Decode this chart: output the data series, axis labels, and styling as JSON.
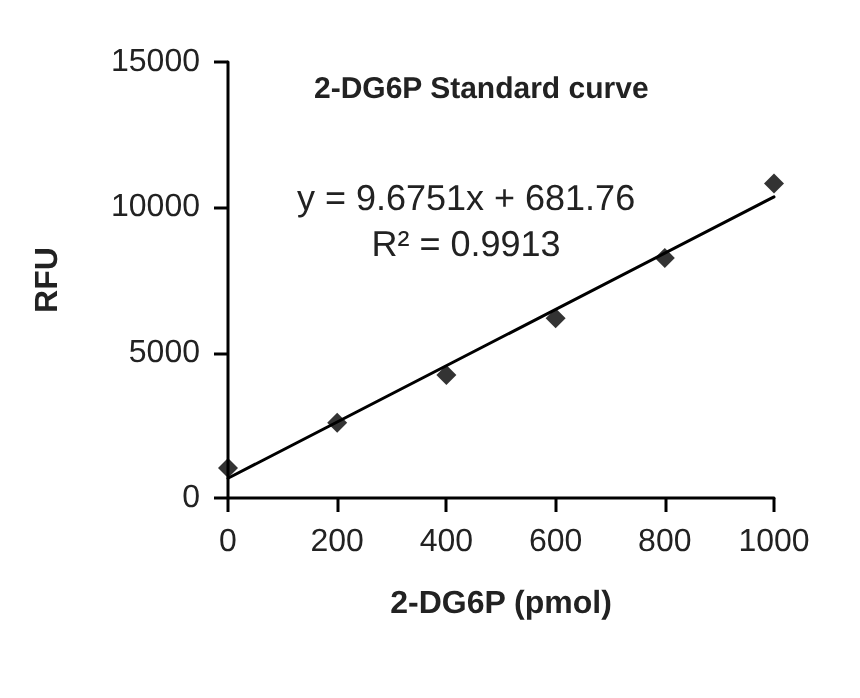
{
  "chart_data": {
    "type": "scatter",
    "title": "2-DG6P Standard curve",
    "xlabel": "2-DG6P (pmol)",
    "ylabel": "RFU",
    "annotations": [
      "y = 9.6751x + 681.76",
      "R² = 0.9913"
    ],
    "x": [
      0,
      200,
      400,
      600,
      800,
      1000
    ],
    "series": [
      {
        "color": "#000000",
        "marker": "diamond",
        "values": [
          1030,
          2590,
          4230,
          6180,
          8260,
          10820
        ]
      },
      {
        "type": "line",
        "color": "#000000",
        "marker": "none",
        "line_style": "solid",
        "x": [
          0,
          1000
        ],
        "values": [
          680,
          10360
        ]
      }
    ],
    "xlim": [
      0,
      1000
    ],
    "xticks": [
      0,
      200,
      400,
      600,
      800,
      1000
    ],
    "ylim": [
      0,
      15000
    ],
    "yticks": [
      0,
      5000,
      10000,
      15000
    ],
    "grid": false
  }
}
